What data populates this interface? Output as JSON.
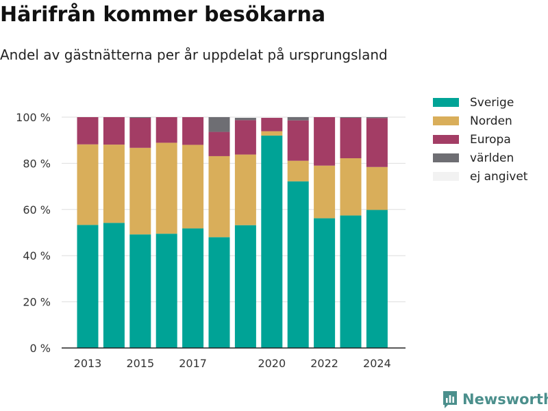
{
  "header": {
    "title": "Härifrån kommer besökarna",
    "subtitle": "Andel av gästnätterna per år uppdelat på ursprungsland"
  },
  "brand": {
    "name": "Newsworthy",
    "icon": "newsworthy-logo-icon"
  },
  "chart_data": {
    "type": "bar",
    "stacked": true,
    "title": "Härifrån kommer besökarna",
    "subtitle": "Andel av gästnätterna per år uppdelat på ursprungsland",
    "x": [
      2013,
      2014,
      2015,
      2016,
      2017,
      2018,
      2019,
      2020,
      2021,
      2022,
      2023,
      2024
    ],
    "x_tick_values": [
      2013,
      2015,
      2017,
      2020,
      2022,
      2024
    ],
    "x_tick_labels": [
      "2013",
      "2015",
      "2017",
      "2020",
      "2022",
      "2024"
    ],
    "ylim": [
      0,
      100
    ],
    "y_ticks": [
      0,
      20,
      40,
      60,
      80,
      100
    ],
    "y_tick_labels": [
      "0 %",
      "20 %",
      "40 %",
      "60 %",
      "80 %",
      "100 %"
    ],
    "grid": true,
    "legend_position": "right",
    "series": [
      {
        "name": "Sverige",
        "color": "#00a396",
        "values": [
          53.3,
          54.2,
          49.2,
          49.5,
          51.8,
          48.0,
          53.2,
          92.0,
          72.2,
          56.2,
          57.4,
          59.8
        ]
      },
      {
        "name": "Norden",
        "color": "#d9ae5a",
        "values": [
          34.9,
          33.9,
          37.5,
          39.4,
          36.2,
          35.1,
          30.6,
          1.9,
          8.9,
          22.8,
          24.8,
          18.6
        ]
      },
      {
        "name": "Europa",
        "color": "#a33d65",
        "values": [
          11.8,
          11.9,
          13.0,
          11.1,
          12.0,
          10.5,
          14.9,
          5.8,
          17.5,
          21.0,
          17.5,
          21.2
        ]
      },
      {
        "name": "världen",
        "color": "#6e6e73",
        "values": [
          0.0,
          0.0,
          0.3,
          0.0,
          0.0,
          6.4,
          1.0,
          0.0,
          1.4,
          0.0,
          0.3,
          0.4
        ]
      },
      {
        "name": "ej angivet",
        "color": "#f2f2f2",
        "values": [
          0.0,
          0.0,
          0.0,
          0.0,
          0.0,
          0.0,
          0.3,
          0.3,
          0.0,
          0.0,
          0.0,
          0.0
        ]
      }
    ]
  }
}
